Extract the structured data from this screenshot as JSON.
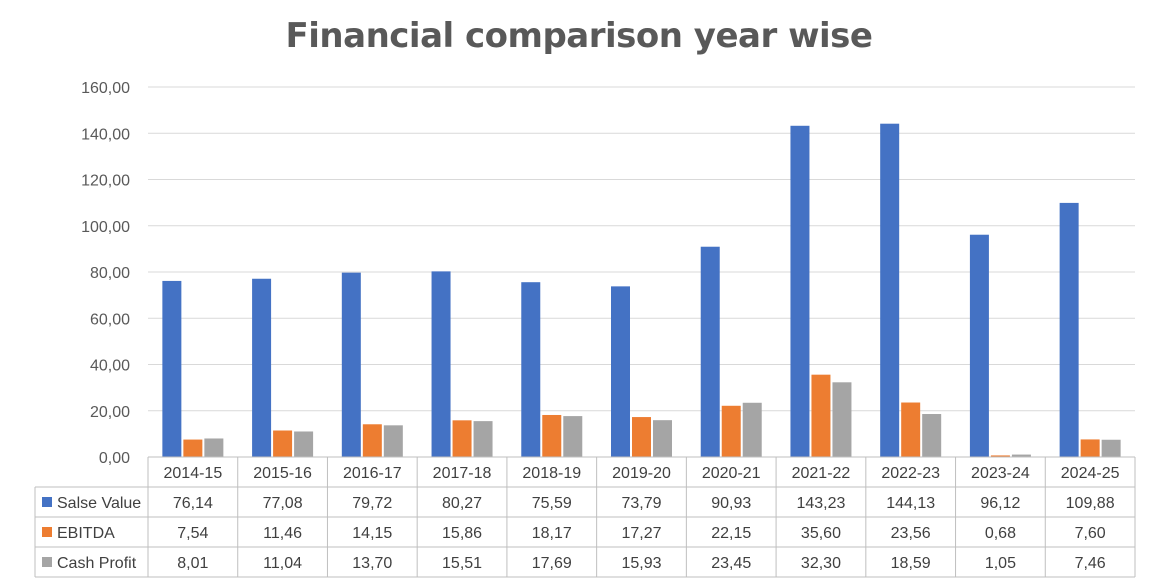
{
  "chart_data": {
    "type": "bar",
    "title": "Financial comparison year wise",
    "xlabel": "",
    "ylabel": "",
    "categories": [
      "2014-15",
      "2015-16",
      "2016-17",
      "2017-18",
      "2018-19",
      "2019-20",
      "2020-21",
      "2021-22",
      "2022-23",
      "2023-24",
      "2024-25"
    ],
    "series": [
      {
        "name": "Salse Value",
        "color": "#4472C4",
        "values": [
          76.14,
          77.08,
          79.72,
          80.27,
          75.59,
          73.79,
          90.93,
          143.23,
          144.13,
          96.12,
          109.88
        ],
        "labels": [
          "76,14",
          "77,08",
          "79,72",
          "80,27",
          "75,59",
          "73,79",
          "90,93",
          "143,23",
          "144,13",
          "96,12",
          "109,88"
        ]
      },
      {
        "name": "EBITDA",
        "color": "#ED7D31",
        "values": [
          7.54,
          11.46,
          14.15,
          15.86,
          18.17,
          17.27,
          22.15,
          35.6,
          23.56,
          0.68,
          7.6
        ],
        "labels": [
          "7,54",
          "11,46",
          "14,15",
          "15,86",
          "18,17",
          "17,27",
          "22,15",
          "35,60",
          "23,56",
          "0,68",
          "7,60"
        ]
      },
      {
        "name": "Cash Profit",
        "color": "#A5A5A5",
        "values": [
          8.01,
          11.04,
          13.7,
          15.51,
          17.69,
          15.93,
          23.45,
          32.3,
          18.59,
          1.05,
          7.46
        ],
        "labels": [
          "8,01",
          "11,04",
          "13,70",
          "15,51",
          "17,69",
          "15,93",
          "23,45",
          "32,30",
          "18,59",
          "1,05",
          "7,46"
        ]
      }
    ],
    "ylim": [
      0,
      160
    ],
    "yticks": [
      "0,00",
      "20,00",
      "40,00",
      "60,00",
      "80,00",
      "100,00",
      "120,00",
      "140,00",
      "160,00"
    ],
    "grid": true,
    "legend": "data-table",
    "data_table": true
  }
}
